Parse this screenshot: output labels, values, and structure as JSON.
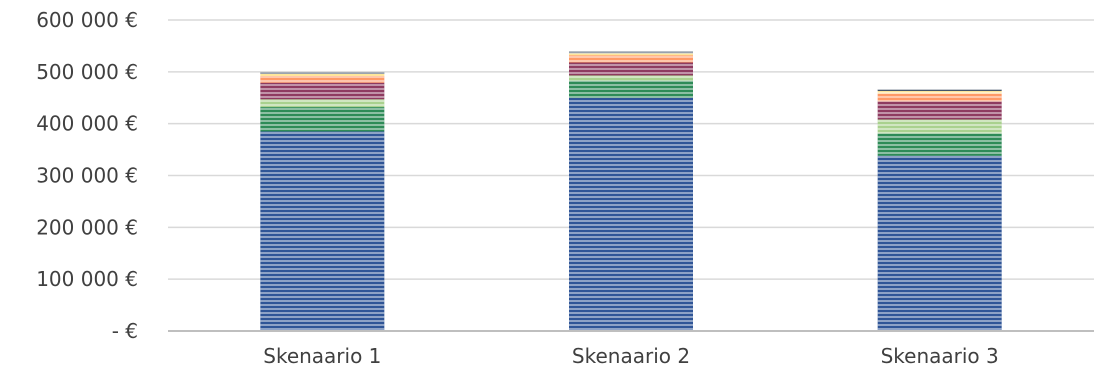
{
  "chart_data": {
    "type": "bar",
    "stacked": true,
    "categories": [
      "Skenaario 1",
      "Skenaario 2",
      "Skenaario 3"
    ],
    "y_tick_labels": [
      "-   €",
      "100 000 €",
      "200 000 €",
      "300 000 €",
      "400 000 €",
      "500 000 €",
      "600 000 €"
    ],
    "ylim": [
      0,
      600000
    ],
    "grid": true,
    "legend": "none",
    "series": [
      {
        "color": "#2f5597",
        "values": [
          385000,
          450000,
          338000
        ]
      },
      {
        "color": "#2e8b57",
        "values": [
          47000,
          33000,
          43000
        ]
      },
      {
        "color": "#a9d18e",
        "values": [
          15000,
          10000,
          27000
        ]
      },
      {
        "color": "#8e3b60",
        "values": [
          32000,
          25000,
          35000
        ]
      },
      {
        "color": "#ff9966",
        "values": [
          13000,
          14000,
          15000
        ]
      },
      {
        "color": "#ffe699",
        "values": [
          4000,
          4000,
          5000
        ]
      },
      {
        "color": "#44546a",
        "values": [
          3000,
          3000,
          3000
        ]
      }
    ]
  }
}
